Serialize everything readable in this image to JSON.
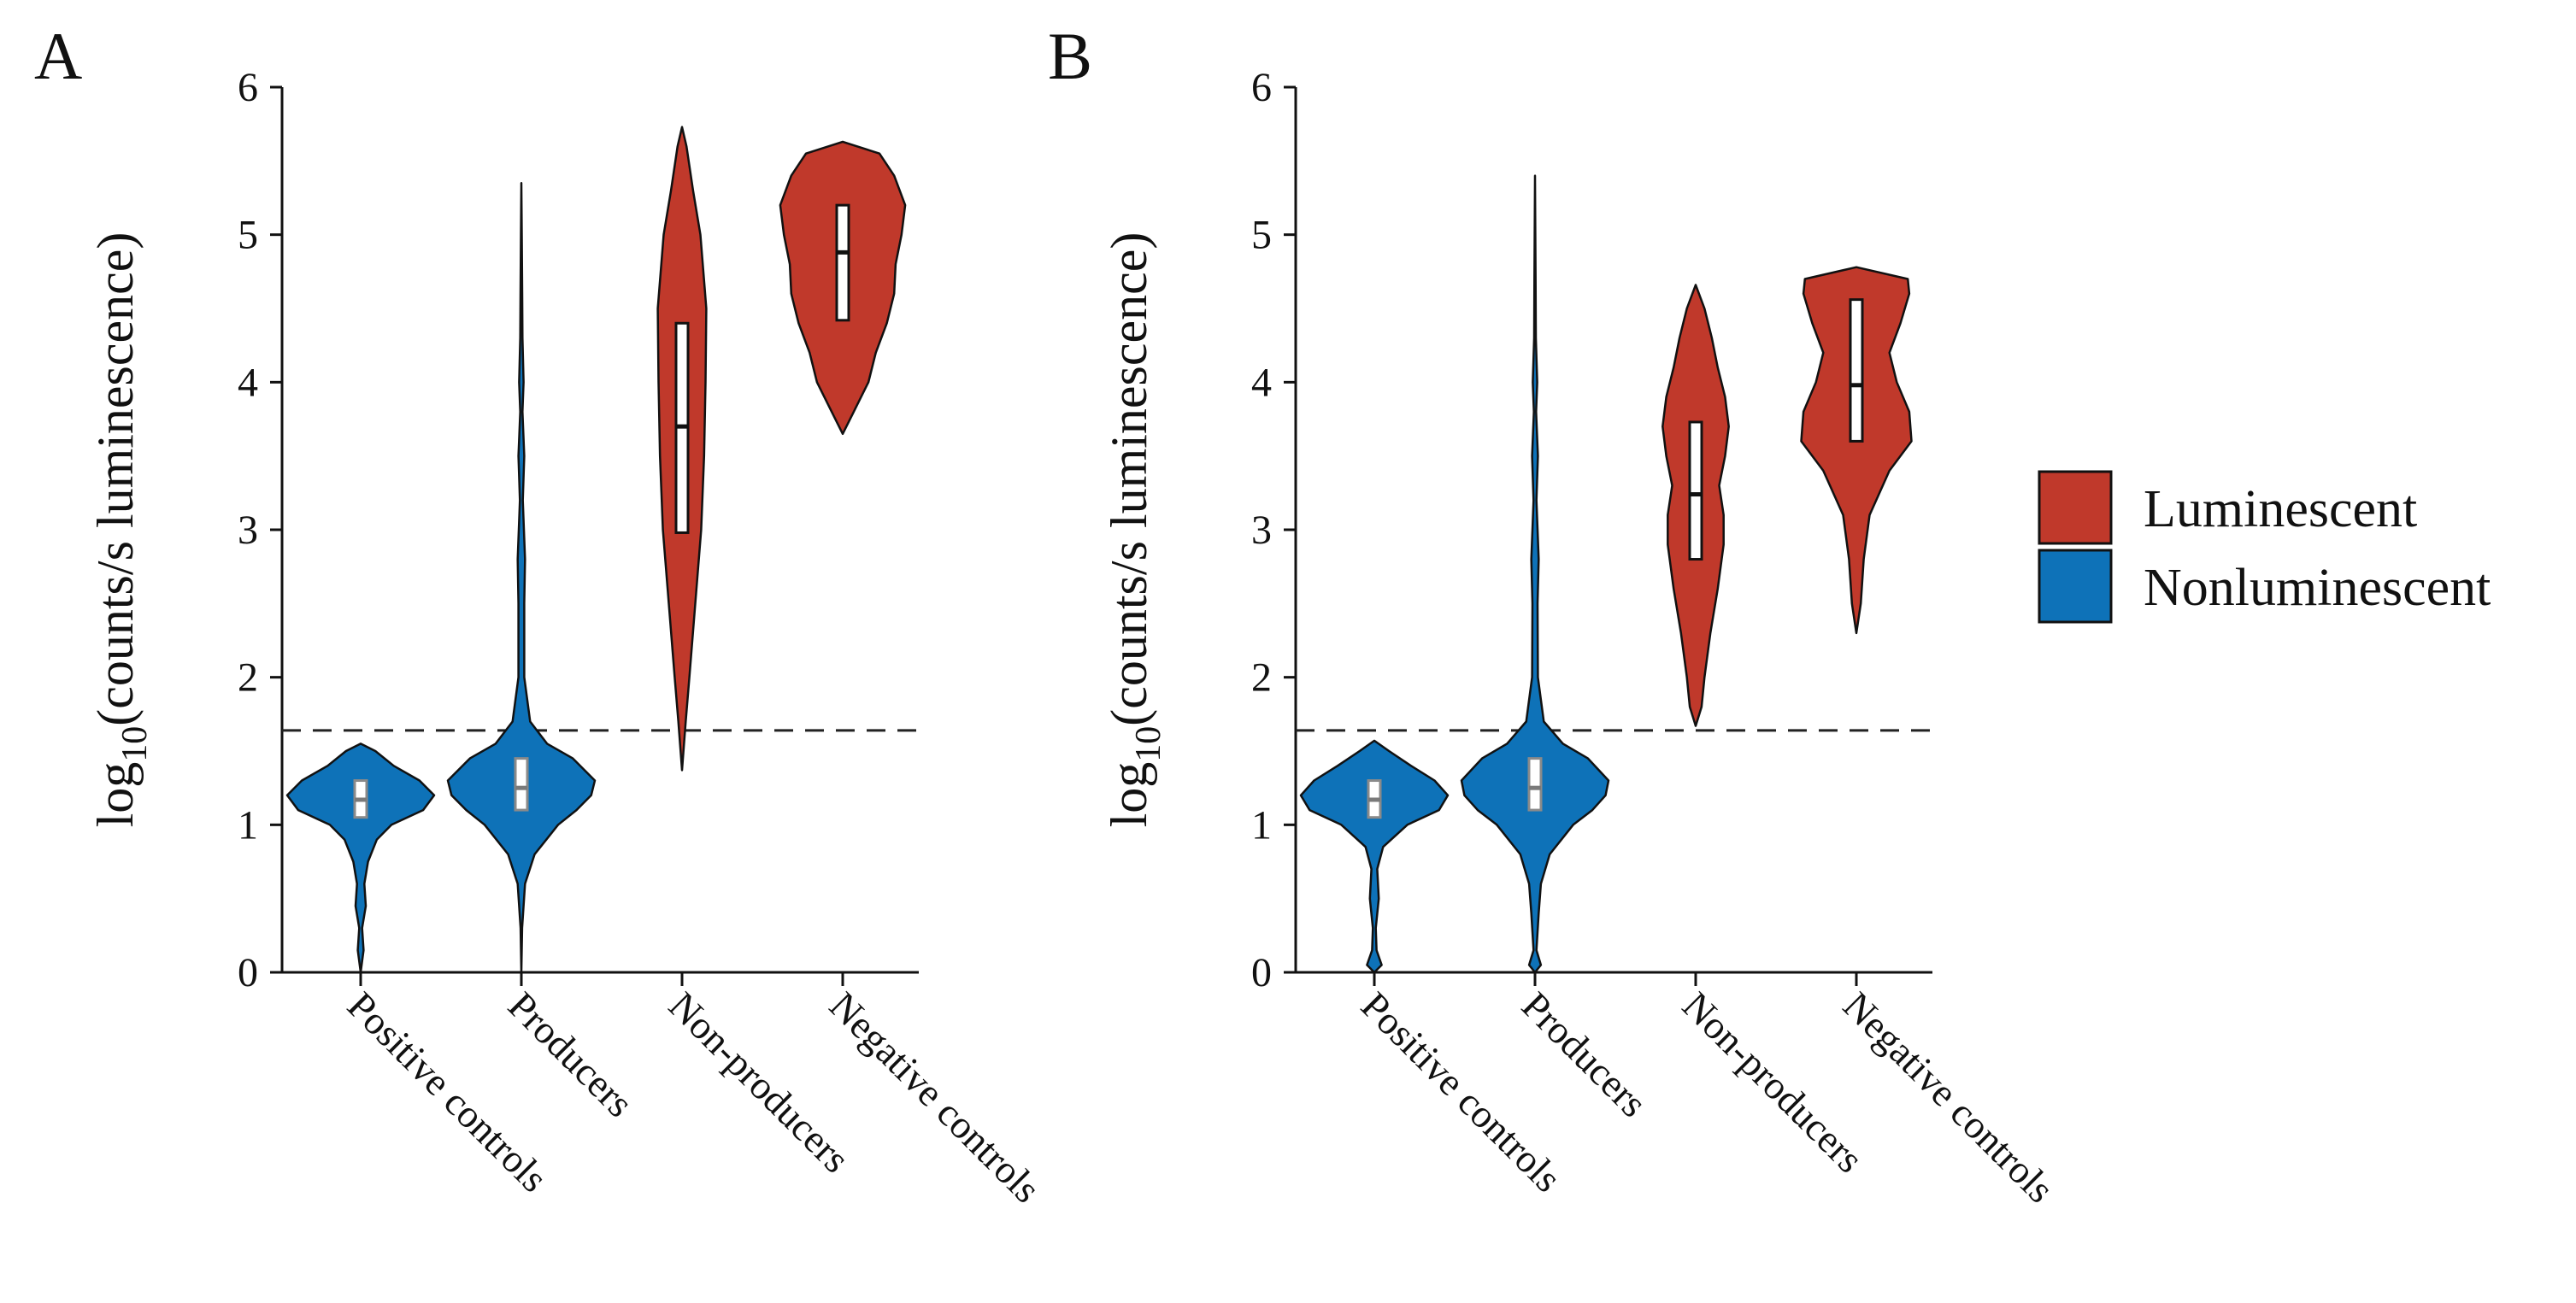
{
  "colors": {
    "Luminescent": "#C0392B",
    "Nonluminescent": "#0E72B8",
    "threshold_line": "#222222",
    "box_fill": "#ffffff"
  },
  "legend": {
    "items": [
      {
        "label": "Luminescent",
        "color": "#C0392B"
      },
      {
        "label": "Nonluminescent",
        "color": "#0E72B8"
      }
    ],
    "placement": "right"
  },
  "chart_data": [
    {
      "type": "violin",
      "panel": "A",
      "ylabel": "log10(counts/s luminescence)",
      "ylim": [
        0,
        6
      ],
      "yticks": [
        0,
        1,
        2,
        3,
        4,
        5,
        6
      ],
      "categories": [
        "Positive controls",
        "Producers",
        "Non-producers",
        "Negative controls"
      ],
      "threshold": 1.64,
      "groups": [
        {
          "category": "Positive controls",
          "class": "Nonluminescent",
          "min": 0.0,
          "max": 1.55,
          "q1": 1.05,
          "median": 1.17,
          "q3": 1.3,
          "profile": [
            [
              0.0,
              0.0
            ],
            [
              0.15,
              0.04
            ],
            [
              0.3,
              0.02
            ],
            [
              0.45,
              0.07
            ],
            [
              0.6,
              0.05
            ],
            [
              0.75,
              0.1
            ],
            [
              0.9,
              0.22
            ],
            [
              1.0,
              0.42
            ],
            [
              1.1,
              0.85
            ],
            [
              1.2,
              1.0
            ],
            [
              1.3,
              0.8
            ],
            [
              1.4,
              0.45
            ],
            [
              1.5,
              0.2
            ],
            [
              1.55,
              0.0
            ]
          ]
        },
        {
          "category": "Producers",
          "class": "Nonluminescent",
          "min": 0.0,
          "max": 5.35,
          "q1": 1.1,
          "median": 1.25,
          "q3": 1.45,
          "profile": [
            [
              0.0,
              0.0
            ],
            [
              0.3,
              0.01
            ],
            [
              0.6,
              0.05
            ],
            [
              0.8,
              0.18
            ],
            [
              1.0,
              0.5
            ],
            [
              1.1,
              0.75
            ],
            [
              1.2,
              0.95
            ],
            [
              1.3,
              1.0
            ],
            [
              1.45,
              0.7
            ],
            [
              1.55,
              0.35
            ],
            [
              1.7,
              0.12
            ],
            [
              2.0,
              0.04
            ],
            [
              2.5,
              0.04
            ],
            [
              2.8,
              0.05
            ],
            [
              3.2,
              0.02
            ],
            [
              3.5,
              0.04
            ],
            [
              3.8,
              0.015
            ],
            [
              4.0,
              0.03
            ],
            [
              4.3,
              0.015
            ],
            [
              4.6,
              0.012
            ],
            [
              5.0,
              0.006
            ],
            [
              5.35,
              0.0
            ]
          ]
        },
        {
          "category": "Non-producers",
          "class": "Luminescent",
          "min": 1.37,
          "max": 5.73,
          "q1": 2.98,
          "median": 3.7,
          "q3": 4.4,
          "profile": [
            [
              1.37,
              0.0
            ],
            [
              1.7,
              0.05
            ],
            [
              2.0,
              0.1
            ],
            [
              2.5,
              0.18
            ],
            [
              3.0,
              0.26
            ],
            [
              3.5,
              0.3
            ],
            [
              4.0,
              0.32
            ],
            [
              4.5,
              0.33
            ],
            [
              5.0,
              0.25
            ],
            [
              5.3,
              0.15
            ],
            [
              5.6,
              0.06
            ],
            [
              5.73,
              0.0
            ]
          ]
        },
        {
          "category": "Negative controls",
          "class": "Luminescent",
          "min": 3.65,
          "max": 5.63,
          "q1": 4.42,
          "median": 4.88,
          "q3": 5.2,
          "profile": [
            [
              3.65,
              0.0
            ],
            [
              3.8,
              0.15
            ],
            [
              4.0,
              0.35
            ],
            [
              4.2,
              0.45
            ],
            [
              4.4,
              0.6
            ],
            [
              4.6,
              0.7
            ],
            [
              4.8,
              0.72
            ],
            [
              5.0,
              0.8
            ],
            [
              5.2,
              0.85
            ],
            [
              5.4,
              0.7
            ],
            [
              5.55,
              0.5
            ],
            [
              5.63,
              0.0
            ]
          ]
        }
      ]
    },
    {
      "type": "violin",
      "panel": "B",
      "ylabel": "log10(counts/s luminescence)",
      "ylim": [
        0,
        6
      ],
      "yticks": [
        0,
        1,
        2,
        3,
        4,
        5,
        6
      ],
      "categories": [
        "Positive controls",
        "Producers",
        "Non-producers",
        "Negative controls"
      ],
      "threshold": 1.64,
      "groups": [
        {
          "category": "Positive controls",
          "class": "Nonluminescent",
          "min": 0.0,
          "max": 1.57,
          "q1": 1.05,
          "median": 1.17,
          "q3": 1.3,
          "profile": [
            [
              0.0,
              0.0
            ],
            [
              0.05,
              0.1
            ],
            [
              0.15,
              0.03
            ],
            [
              0.3,
              0.02
            ],
            [
              0.5,
              0.06
            ],
            [
              0.7,
              0.04
            ],
            [
              0.85,
              0.12
            ],
            [
              1.0,
              0.45
            ],
            [
              1.1,
              0.88
            ],
            [
              1.2,
              1.0
            ],
            [
              1.3,
              0.82
            ],
            [
              1.4,
              0.5
            ],
            [
              1.5,
              0.2
            ],
            [
              1.57,
              0.0
            ]
          ]
        },
        {
          "category": "Producers",
          "class": "Nonluminescent",
          "min": 0.0,
          "max": 5.4,
          "q1": 1.1,
          "median": 1.25,
          "q3": 1.45,
          "profile": [
            [
              0.0,
              0.0
            ],
            [
              0.05,
              0.08
            ],
            [
              0.15,
              0.02
            ],
            [
              0.4,
              0.05
            ],
            [
              0.6,
              0.08
            ],
            [
              0.8,
              0.2
            ],
            [
              1.0,
              0.52
            ],
            [
              1.1,
              0.78
            ],
            [
              1.2,
              0.96
            ],
            [
              1.3,
              1.0
            ],
            [
              1.45,
              0.72
            ],
            [
              1.55,
              0.38
            ],
            [
              1.7,
              0.12
            ],
            [
              2.0,
              0.04
            ],
            [
              2.5,
              0.035
            ],
            [
              2.8,
              0.05
            ],
            [
              3.2,
              0.02
            ],
            [
              3.5,
              0.04
            ],
            [
              3.8,
              0.015
            ],
            [
              4.0,
              0.03
            ],
            [
              4.3,
              0.012
            ],
            [
              4.7,
              0.008
            ],
            [
              5.0,
              0.005
            ],
            [
              5.4,
              0.0
            ]
          ]
        },
        {
          "category": "Non-producers",
          "class": "Luminescent",
          "min": 1.67,
          "max": 4.66,
          "q1": 2.8,
          "median": 3.24,
          "q3": 3.73,
          "profile": [
            [
              1.67,
              0.0
            ],
            [
              1.8,
              0.08
            ],
            [
              2.0,
              0.12
            ],
            [
              2.3,
              0.2
            ],
            [
              2.6,
              0.3
            ],
            [
              2.9,
              0.38
            ],
            [
              3.1,
              0.38
            ],
            [
              3.3,
              0.32
            ],
            [
              3.5,
              0.4
            ],
            [
              3.7,
              0.45
            ],
            [
              3.9,
              0.4
            ],
            [
              4.1,
              0.3
            ],
            [
              4.3,
              0.22
            ],
            [
              4.5,
              0.12
            ],
            [
              4.66,
              0.0
            ]
          ]
        },
        {
          "category": "Negative controls",
          "class": "Luminescent",
          "min": 2.3,
          "max": 4.78,
          "q1": 3.6,
          "median": 3.98,
          "q3": 4.56,
          "profile": [
            [
              2.3,
              0.0
            ],
            [
              2.5,
              0.06
            ],
            [
              2.8,
              0.1
            ],
            [
              3.1,
              0.18
            ],
            [
              3.4,
              0.45
            ],
            [
              3.6,
              0.75
            ],
            [
              3.8,
              0.72
            ],
            [
              4.0,
              0.55
            ],
            [
              4.2,
              0.45
            ],
            [
              4.4,
              0.6
            ],
            [
              4.6,
              0.72
            ],
            [
              4.7,
              0.7
            ],
            [
              4.78,
              0.0
            ]
          ]
        }
      ]
    }
  ]
}
